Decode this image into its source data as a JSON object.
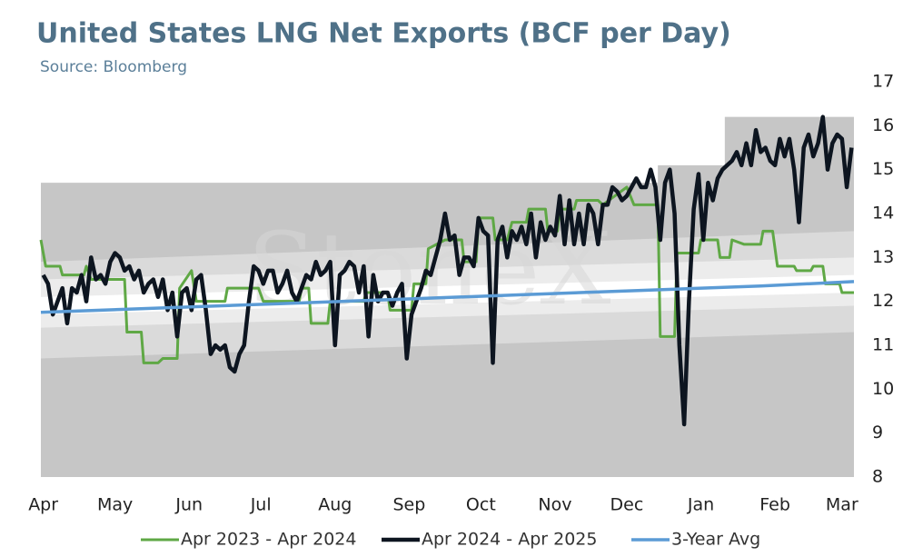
{
  "chart_data": {
    "type": "line",
    "title": "United States LNG Net Exports (BCF per Day)",
    "subtitle": "Source: Bloomberg",
    "watermark": "StoneX",
    "xlim": [
      -1,
      339
    ],
    "xticks": [
      {
        "value": 0,
        "label": "Apr"
      },
      {
        "value": 30,
        "label": "May"
      },
      {
        "value": 61,
        "label": "Jun"
      },
      {
        "value": 91,
        "label": "Jul"
      },
      {
        "value": 122,
        "label": "Aug"
      },
      {
        "value": 153,
        "label": "Sep"
      },
      {
        "value": 183,
        "label": "Oct"
      },
      {
        "value": 214,
        "label": "Nov"
      },
      {
        "value": 244,
        "label": "Dec"
      },
      {
        "value": 275,
        "label": "Jan"
      },
      {
        "value": 306,
        "label": "Feb"
      },
      {
        "value": 334,
        "label": "Mar"
      }
    ],
    "ylim": [
      8,
      17
    ],
    "yticks": [
      8,
      9,
      10,
      11,
      12,
      13,
      14,
      15,
      16,
      17
    ],
    "bands": [
      {
        "color": "#c6c6c6",
        "x": [
          -1,
          257,
          257,
          285,
          285,
          339
        ],
        "upper": [
          14.7,
          14.7,
          15.1,
          15.1,
          16.2,
          16.2
        ],
        "lower": [
          8,
          8,
          8,
          8,
          8,
          8
        ]
      },
      {
        "color": "#dadada",
        "x": [
          -1,
          339
        ],
        "upper": [
          12.9,
          13.6
        ],
        "lower": [
          10.7,
          11.3
        ]
      },
      {
        "color": "#ececec",
        "x": [
          -1,
          339
        ],
        "upper": [
          12.5,
          13.0
        ],
        "lower": [
          11.4,
          11.9
        ]
      },
      {
        "color": "#ffffff",
        "x": [
          -1,
          339
        ],
        "upper": [
          12.1,
          12.6
        ],
        "lower": [
          11.7,
          12.2
        ]
      }
    ],
    "series": [
      {
        "name": "Apr 2023 - Apr 2024",
        "color": "#5fa845",
        "width": 3,
        "x": [
          -1,
          1,
          7,
          8,
          17,
          18,
          20,
          34,
          35,
          41,
          42,
          48,
          50,
          56,
          57,
          62,
          64,
          76,
          77,
          90,
          92,
          107,
          108,
          111,
          112,
          119,
          120,
          134,
          135,
          144,
          145,
          154,
          155,
          160,
          161,
          168,
          175,
          176,
          181,
          182,
          188,
          189,
          194,
          196,
          202,
          203,
          210,
          211,
          215,
          216,
          222,
          223,
          232,
          234,
          244,
          247,
          257,
          258,
          264,
          265,
          274,
          275,
          282,
          283,
          287,
          288,
          293,
          300,
          301,
          305,
          307,
          314,
          315,
          321,
          322,
          326,
          327,
          333,
          334,
          339
        ],
        "values": [
          13.4,
          12.8,
          12.8,
          12.6,
          12.6,
          12.8,
          12.5,
          12.5,
          11.3,
          11.3,
          10.6,
          10.6,
          10.7,
          10.7,
          12.3,
          12.7,
          12.0,
          12.0,
          12.3,
          12.3,
          12.0,
          12.0,
          12.3,
          12.3,
          11.5,
          11.5,
          12.0,
          12.0,
          12.2,
          12.2,
          11.8,
          11.8,
          12.4,
          12.4,
          13.2,
          13.4,
          13.4,
          12.9,
          12.9,
          13.9,
          13.9,
          13.4,
          13.4,
          13.8,
          13.8,
          14.1,
          14.1,
          13.6,
          13.6,
          14.1,
          14.1,
          14.3,
          14.3,
          14.2,
          14.6,
          14.2,
          14.2,
          11.2,
          11.2,
          13.1,
          13.1,
          13.4,
          13.4,
          13.0,
          13.0,
          13.4,
          13.3,
          13.3,
          13.6,
          13.6,
          12.8,
          12.8,
          12.7,
          12.7,
          12.8,
          12.8,
          12.4,
          12.4,
          12.2,
          12.2
        ]
      },
      {
        "name": "Apr 2024 - Apr 2025",
        "color": "#0d1520",
        "width": 4.5,
        "x": [
          0,
          2,
          4,
          6,
          8,
          10,
          12,
          14,
          16,
          18,
          20,
          22,
          24,
          26,
          28,
          30,
          32,
          34,
          36,
          38,
          40,
          42,
          44,
          46,
          48,
          50,
          52,
          54,
          56,
          58,
          60,
          62,
          64,
          66,
          68,
          70,
          72,
          74,
          76,
          78,
          80,
          82,
          84,
          86,
          88,
          90,
          92,
          94,
          96,
          98,
          100,
          102,
          104,
          106,
          108,
          110,
          112,
          114,
          116,
          118,
          120,
          122,
          124,
          126,
          128,
          130,
          132,
          134,
          136,
          138,
          140,
          142,
          144,
          146,
          148,
          150,
          152,
          154,
          156,
          158,
          160,
          162,
          164,
          166,
          168,
          170,
          172,
          174,
          176,
          178,
          180,
          182,
          184,
          186,
          188,
          190,
          192,
          194,
          196,
          198,
          200,
          202,
          204,
          206,
          208,
          210,
          212,
          214,
          216,
          218,
          220,
          222,
          224,
          226,
          228,
          230,
          232,
          234,
          236,
          238,
          240,
          242,
          244,
          246,
          248,
          250,
          252,
          254,
          256,
          258,
          260,
          262,
          264,
          266,
          268,
          270,
          272,
          274,
          276,
          278,
          280,
          282,
          284,
          286,
          288,
          290,
          292,
          294,
          296,
          298,
          300,
          302,
          304,
          306,
          308,
          310,
          312,
          314,
          316,
          318,
          320,
          322,
          324,
          326,
          328,
          330,
          332,
          334,
          336,
          338
        ],
        "values": [
          12.6,
          12.4,
          11.7,
          12.0,
          12.3,
          11.5,
          12.3,
          12.2,
          12.6,
          12.0,
          13.0,
          12.5,
          12.6,
          12.4,
          12.9,
          13.1,
          13.0,
          12.7,
          12.8,
          12.5,
          12.7,
          12.2,
          12.4,
          12.5,
          12.1,
          12.5,
          11.8,
          12.2,
          11.2,
          12.2,
          12.3,
          11.8,
          12.5,
          12.6,
          11.8,
          10.8,
          11.0,
          10.9,
          11.0,
          10.5,
          10.4,
          10.8,
          11.0,
          12.0,
          12.8,
          12.7,
          12.4,
          12.7,
          12.7,
          12.2,
          12.4,
          12.7,
          12.2,
          12.0,
          12.3,
          12.6,
          12.5,
          12.9,
          12.6,
          12.7,
          12.9,
          11.0,
          12.6,
          12.7,
          12.9,
          12.8,
          12.2,
          12.8,
          11.2,
          12.6,
          12.0,
          12.2,
          12.2,
          11.9,
          12.2,
          12.4,
          10.7,
          11.7,
          12.0,
          12.3,
          12.7,
          12.6,
          13.0,
          13.4,
          14.0,
          13.4,
          13.5,
          12.6,
          13.0,
          13.0,
          12.8,
          13.9,
          13.6,
          13.5,
          10.6,
          13.4,
          13.7,
          13.0,
          13.6,
          13.4,
          13.7,
          13.3,
          14.0,
          13.0,
          13.8,
          13.4,
          13.7,
          13.5,
          14.4,
          13.3,
          14.3,
          13.3,
          14.0,
          13.3,
          14.2,
          14.0,
          13.3,
          14.2,
          14.2,
          14.6,
          14.5,
          14.3,
          14.4,
          14.6,
          14.8,
          14.6,
          14.6,
          15.0,
          14.6,
          13.4,
          14.7,
          15.0,
          14.0,
          11.0,
          9.2,
          12.0,
          14.1,
          14.9,
          13.4,
          14.7,
          14.3,
          14.8,
          15.0,
          15.1,
          15.2,
          15.4,
          15.1,
          15.6,
          15.1,
          15.9,
          15.4,
          15.5,
          15.2,
          15.1,
          15.7,
          15.3,
          15.7,
          15.0,
          13.8,
          15.5,
          15.8,
          15.3,
          15.6,
          16.2,
          15.0,
          15.6,
          15.8,
          15.7,
          14.6,
          15.5
        ]
      },
      {
        "name": "3-Year Avg",
        "color": "#5b9bd5",
        "width": 3.5,
        "x": [
          -1,
          50,
          100,
          150,
          200,
          250,
          300,
          339
        ],
        "values": [
          11.75,
          11.85,
          11.95,
          12.05,
          12.15,
          12.25,
          12.35,
          12.45
        ]
      }
    ],
    "legend": "bottom"
  }
}
